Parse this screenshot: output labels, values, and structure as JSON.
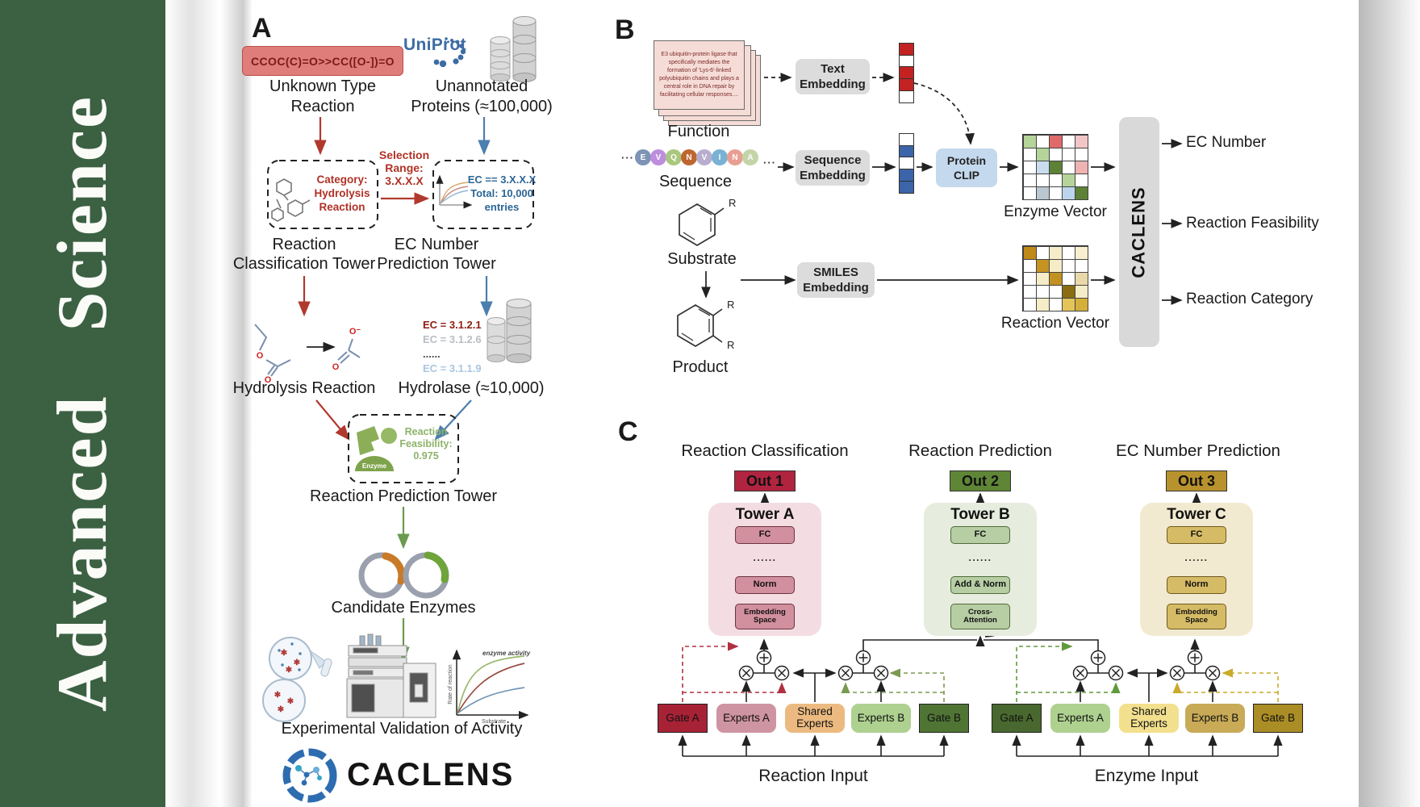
{
  "journal": {
    "name": "Advanced Science",
    "brand_color": "#3b6142"
  },
  "panelA": {
    "label": "A",
    "smiles_box": "CCOC(C)=O>>CC([O-])=O",
    "unknown_type": [
      "Unknown Type",
      "Reaction"
    ],
    "uniprot_logo": "UniProt",
    "unannotated": [
      "Unannotated",
      "Proteins (≈100,000)"
    ],
    "category_box": [
      "Category:",
      "Hydrolysis",
      "Reaction"
    ],
    "selection_range": [
      "Selection",
      "Range:",
      "3.X.X.X"
    ],
    "ec_filter_box": [
      "EC == 3.X.X.X",
      "Total: 10,000",
      "entries"
    ],
    "reaction_tower": [
      "Reaction",
      "Classification Tower"
    ],
    "ec_tower": [
      "EC Number",
      "Prediction Tower"
    ],
    "hydrolysis_label": "Hydrolysis Reaction",
    "ec_list": [
      {
        "text": "EC = 3.1.2.1",
        "color": "#8e1d12"
      },
      {
        "text": "EC = 3.1.2.6",
        "color": "#b9bdc2"
      },
      {
        "text": "......",
        "color": "#444444"
      },
      {
        "text": "EC = 3.1.1.9",
        "color": "#a8c6e2"
      }
    ],
    "hydrolase_label": "Hydrolase (≈10,000)",
    "enzyme_badge": "Enzyme",
    "feasibility_box": [
      "Reaction",
      "Feasibility:",
      "0.975"
    ],
    "prediction_tower": "Reaction Prediction Tower",
    "candidate_label": "Candidate Enzymes",
    "validation_label": "Experimental Validation of Activity",
    "activity_plot": {
      "annotation": "enzyme activity",
      "ylabel": "Rate of reaction",
      "xlabel": "Substrate"
    },
    "brand": "CACLENS"
  },
  "panelB": {
    "label": "B",
    "function_card": "E3 ubiquitin-protein ligase that specifically mediates the formation of 'Lys-6'-linked polyubiquitin chains and plays a central role in DNA repair by facilitating cellular responses....",
    "function_label": "Function",
    "ellipsis": "···",
    "residues": [
      {
        "letter": "E",
        "color": "#7e93b6"
      },
      {
        "letter": "V",
        "color": "#bd8ede"
      },
      {
        "letter": "Q",
        "color": "#a9c77e"
      },
      {
        "letter": "N",
        "color": "#bf6630"
      },
      {
        "letter": "V",
        "color": "#b7aecf"
      },
      {
        "letter": "I",
        "color": "#79b2d3"
      },
      {
        "letter": "N",
        "color": "#e89f92"
      },
      {
        "letter": "A",
        "color": "#c4d4a8"
      }
    ],
    "sequence_label": "Sequence",
    "substrate_label": "Substrate",
    "product_label": "Product",
    "r_label": "R",
    "text_embedding": [
      "Text",
      "Embedding"
    ],
    "sequence_embedding": [
      "Sequence",
      "Embedding"
    ],
    "smiles_embedding": [
      "SMILES",
      "Embedding"
    ],
    "protein_clip": [
      "Protein",
      "CLIP"
    ],
    "text_vector": [
      "#c32222",
      "#ffffff",
      "#c32222",
      "#c32222",
      "#ffffff"
    ],
    "sequence_vector": [
      "#ffffff",
      "#3c64a8",
      "#ffffff",
      "#3c64a8",
      "#3c64a8"
    ],
    "enzyme_matrix": [
      [
        "#b5d49a",
        "#ffffff",
        "#e06a6a",
        "#ffffff",
        "#f2c6c6"
      ],
      [
        "#ffffff",
        "#b5d49a",
        "#ffffff",
        "#ffffff",
        "#ffffff"
      ],
      [
        "#ffffff",
        "#c9dcf0",
        "#5d8136",
        "#ffffff",
        "#efb3b3"
      ],
      [
        "#ffffff",
        "#ffffff",
        "#ffffff",
        "#b5d49a",
        "#ffffff"
      ],
      [
        "#ffffff",
        "#bac7d0",
        "#ffffff",
        "#bdd5ec",
        "#5d8136"
      ]
    ],
    "reaction_matrix": [
      [
        "#c08a18",
        "#ffffff",
        "#f5ecc8",
        "#ffffff",
        "#f7efd0"
      ],
      [
        "#ffffff",
        "#c49320",
        "#f5ecc8",
        "#ffffff",
        "#ffffff"
      ],
      [
        "#ffffff",
        "#f5ecc8",
        "#c19122",
        "#ffffff",
        "#ead9a8"
      ],
      [
        "#ffffff",
        "#ffffff",
        "#ffffff",
        "#8a6d12",
        "#f5ecc8"
      ],
      [
        "#ffffff",
        "#f5ecc8",
        "#ffffff",
        "#e3c45a",
        "#d4af3a"
      ]
    ],
    "enzyme_vector_label": "Enzyme Vector",
    "reaction_vector_label": "Reaction Vector",
    "caclens_label": "CACLENS",
    "outputs": [
      "EC Number",
      "Reaction Feasibility",
      "Reaction Category"
    ]
  },
  "panelC": {
    "label": "C",
    "columns": [
      {
        "heading": "Reaction Classification",
        "out": "Out 1",
        "tower": "Tower A",
        "blocks": [
          "FC",
          "......",
          "Norm",
          "Embedding Space"
        ],
        "out_bg": "#b12440"
      },
      {
        "heading": "Reaction Prediction",
        "out": "Out 2",
        "tower": "Tower B",
        "blocks": [
          "FC",
          "......",
          "Add & Norm",
          "Cross-Attention"
        ],
        "out_bg": "#5f8636"
      },
      {
        "heading": "EC Number Prediction",
        "out": "Out 3",
        "tower": "Tower C",
        "blocks": [
          "FC",
          "......",
          "Norm",
          "Embedding Space"
        ],
        "out_bg": "#b8922d"
      }
    ],
    "moe": [
      {
        "input_label": "Reaction Input",
        "boxes": [
          {
            "label": "Gate A",
            "bg": "#a82236",
            "type": "gate"
          },
          {
            "label": "Experts A",
            "bg": "#cf94a1",
            "type": "experts"
          },
          {
            "label": "Shared Experts",
            "bg": "#ecba80",
            "type": "experts"
          },
          {
            "label": "Experts B",
            "bg": "#aed190",
            "type": "experts"
          },
          {
            "label": "Gate B",
            "bg": "#4f7434",
            "type": "gate"
          }
        ]
      },
      {
        "input_label": "Enzyme Input",
        "boxes": [
          {
            "label": "Gate A",
            "bg": "#48682f",
            "type": "gate"
          },
          {
            "label": "Experts A",
            "bg": "#aed190",
            "type": "experts"
          },
          {
            "label": "Shared Experts",
            "bg": "#f3e08e",
            "type": "experts"
          },
          {
            "label": "Experts B",
            "bg": "#c8aa57",
            "type": "experts"
          },
          {
            "label": "Gate B",
            "bg": "#ab8d26",
            "type": "gate"
          }
        ]
      }
    ]
  }
}
